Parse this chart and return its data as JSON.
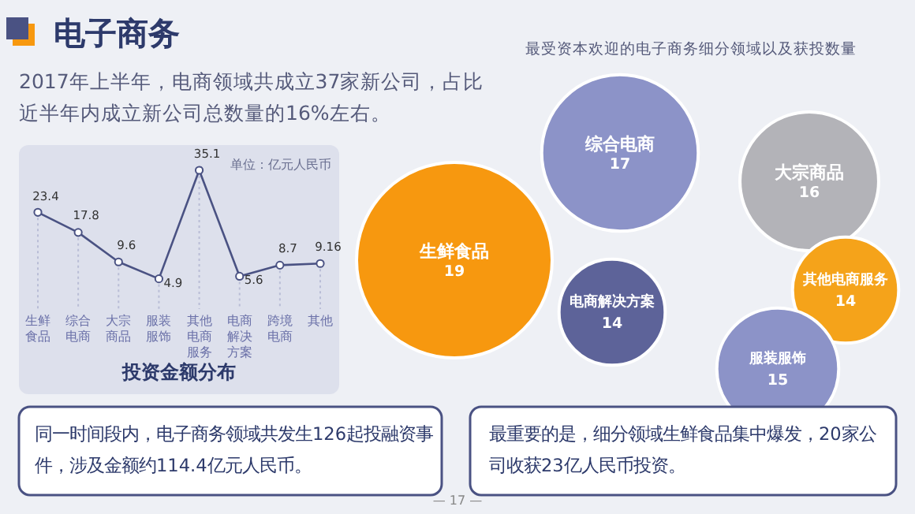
{
  "chart_data": [
    {
      "type": "line",
      "title": "投资金额分布",
      "categories": [
        "生鲜食品",
        "综合电商",
        "大宗商品",
        "服装服饰",
        "其他电商服务",
        "电商解决方案",
        "跨境电商",
        "其他"
      ],
      "values": [
        23.4,
        17.8,
        9.6,
        4.9,
        35.1,
        5.6,
        8.7,
        9.16
      ],
      "color": "#4a5283",
      "data_labels": true,
      "marker": "circle",
      "grid": "x",
      "annotations": [
        "单位：亿元人民币"
      ]
    },
    {
      "type": "other",
      "title": "最受资本欢迎的电子商务细分领域以及获投数量",
      "categories": [
        "综合电商",
        "大宗商品",
        "生鲜食品",
        "电商解决方案",
        "其他电商服务",
        "服装服饰"
      ],
      "values": [
        17,
        16,
        19,
        14,
        14,
        15
      ],
      "colors": [
        "#8c93c8",
        "#b3b3b8",
        "#f7980f",
        "#5d6399",
        "#f5a31a",
        "#8c93c8"
      ],
      "data_labels": true
    },
    {
      "type": "other",
      "title": "电子商务",
      "annotations": [
        "2017年上半年，电商领域共成立37家新公司，占比近半年内成立新公司总数量的16%左右。",
        "同一时间段内，电子商务领域共发生126起投融资事件，涉及金额约114.4亿元人民币。",
        "最重要的是，细分领域生鲜食品集中爆发，20家公司收获23亿人民币投资。",
        "— 17 —"
      ]
    }
  ]
}
